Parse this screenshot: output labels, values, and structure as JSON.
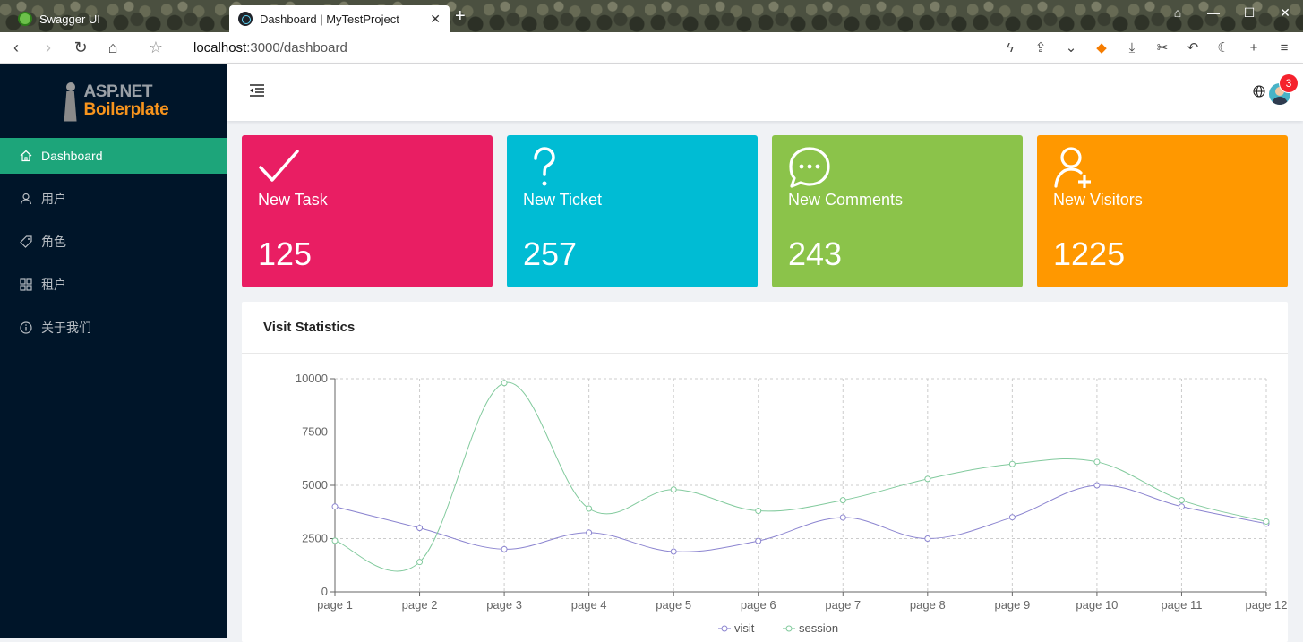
{
  "browser": {
    "tabs": [
      {
        "title": "Swagger UI"
      },
      {
        "title": "Dashboard | MyTestProject"
      }
    ],
    "url_host": "localhost",
    "url_path": ":3000/dashboard"
  },
  "sidebar": {
    "logo": {
      "line1": "ASP.NET",
      "line2": "Boilerplate"
    },
    "items": [
      {
        "label": "Dashboard",
        "icon": "home-icon",
        "active": true
      },
      {
        "label": "用户",
        "icon": "user-icon"
      },
      {
        "label": "角色",
        "icon": "tag-icon"
      },
      {
        "label": "租户",
        "icon": "appstore-icon"
      },
      {
        "label": "关于我们",
        "icon": "info-icon"
      }
    ]
  },
  "header": {
    "notification_count": "3"
  },
  "cards": [
    {
      "label": "New Task",
      "value": "125",
      "color": "#e91e63",
      "icon": "check-icon"
    },
    {
      "label": "New Ticket",
      "value": "257",
      "color": "#00bcd4",
      "icon": "question-icon"
    },
    {
      "label": "New Comments",
      "value": "243",
      "color": "#8bc34a",
      "icon": "comment-icon"
    },
    {
      "label": "New Visitors",
      "value": "1225",
      "color": "#ff9800",
      "icon": "user-add-icon"
    }
  ],
  "panel": {
    "title": "Visit Statistics"
  },
  "chart_data": {
    "type": "line",
    "title": "Visit Statistics",
    "categories": [
      "page 1",
      "page 2",
      "page 3",
      "page 4",
      "page 5",
      "page 6",
      "page 7",
      "page 8",
      "page 9",
      "page 10",
      "page 11",
      "page 12"
    ],
    "series": [
      {
        "name": "visit",
        "color": "#8c85d0",
        "values": [
          4000,
          3000,
          2000,
          2780,
          1890,
          2390,
          3490,
          2500,
          3500,
          5000,
          4000,
          3200
        ]
      },
      {
        "name": "session",
        "color": "#82ca9d",
        "values": [
          2400,
          1400,
          9800,
          3908,
          4800,
          3800,
          4300,
          5300,
          6000,
          6100,
          4300,
          3300
        ]
      }
    ],
    "yticks": [
      0,
      2500,
      5000,
      7500,
      10000
    ],
    "ylim": [
      0,
      10000
    ],
    "grid": true,
    "legend": "bottom-center"
  }
}
